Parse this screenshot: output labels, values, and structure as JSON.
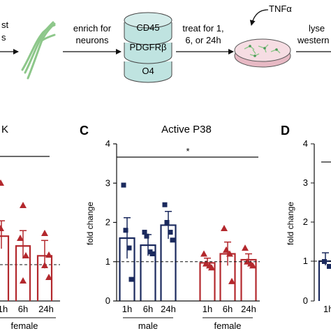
{
  "workflow": {
    "step_partial_left": [
      "st",
      "s"
    ],
    "step_enrich": [
      "enrich for",
      "neurons"
    ],
    "markers": [
      "CD45",
      "PDGFRβ",
      "O4"
    ],
    "step_treat": [
      "treat for 1,",
      "6, or 24h"
    ],
    "stimulus": "TNFα",
    "step_lyse": [
      "lyse",
      "western"
    ]
  },
  "panels": {
    "B": {
      "letter": "",
      "title_fragment": "K",
      "tick_labels": [
        "1h",
        "6h",
        "24h"
      ],
      "group_label": "female",
      "female_means": [
        1.65,
        1.4,
        1.15
      ]
    },
    "C": {
      "letter": "C",
      "title": "Active P38"
    },
    "D": {
      "letter": "D",
      "y_ticks": [
        "4",
        "3",
        "2",
        "1",
        "0"
      ],
      "ylabel": "fold change",
      "tick_label": "1h"
    }
  },
  "chart_data": {
    "type": "bar",
    "title": "Active P38",
    "ylabel": "fold change",
    "ylim": [
      0,
      4
    ],
    "y_ticks": [
      0,
      1,
      2,
      3,
      4
    ],
    "categories": [
      "1h",
      "6h",
      "24h",
      "1h",
      "6h",
      "24h"
    ],
    "group_labels": [
      "male",
      "female"
    ],
    "reference_line": 1,
    "significance_marker": "*",
    "colors": {
      "male": "#1b2a5e",
      "female": "#b3282d"
    },
    "series": [
      {
        "name": "male",
        "means": [
          1.6,
          1.42,
          1.93
        ],
        "sem": [
          0.52,
          0.27,
          0.35
        ],
        "points": [
          [
            2.95,
            1.8,
            1.35,
            0.55
          ],
          [
            1.75,
            1.65,
            1.25,
            1.2
          ],
          [
            2.45,
            2.0,
            1.75,
            1.55
          ]
        ]
      },
      {
        "name": "female",
        "means": [
          0.97,
          1.2,
          1.05
        ],
        "sem": [
          0.12,
          0.3,
          0.15
        ],
        "points": [
          [
            1.2,
            0.95,
            0.9,
            0.85
          ],
          [
            1.85,
            1.3,
            1.2,
            0.5
          ],
          [
            1.35,
            1.0,
            0.95,
            0.9
          ]
        ]
      }
    ]
  }
}
